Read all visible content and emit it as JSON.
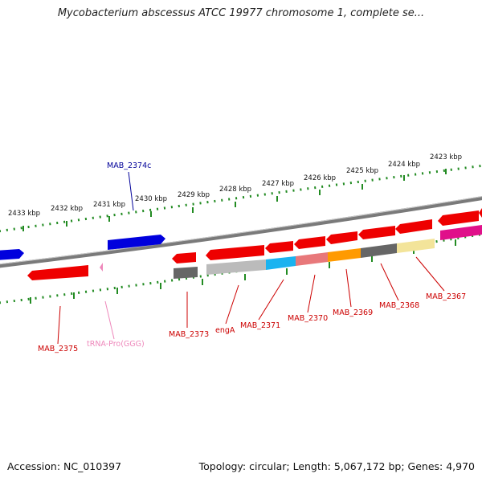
{
  "title": "Mycobacterium abscessus ATCC 19977 chromosome 1, complete se...",
  "accession": "Accession: NC_010397",
  "topology": "Topology: circular; Length: 5,067,172 bp; Genes: 4,970",
  "colors": {
    "tick": "#228B22",
    "backbone": "#808080",
    "forward_gene": "#0000dd",
    "reverse_gene": "#ee0000",
    "label_reverse": "#cc0000",
    "label_forward": "#000099",
    "trna": "#ee88bb"
  },
  "scale_labels": [
    "2433 kbp",
    "2432 kbp",
    "2431 kbp",
    "2430 kbp",
    "2429 kbp",
    "2428 kbp",
    "2427 kbp",
    "2426 kbp",
    "2425 kbp",
    "2424 kbp",
    "2423 kbp"
  ],
  "gene_labels": {
    "mab2374c": "MAB_2374c",
    "mab2375": "MAB_2375",
    "trna": "tRNA-Pro(GGG)",
    "mab2373": "MAB_2373",
    "enga": "engA",
    "mab2371": "MAB_2371",
    "mab2370": "MAB_2370",
    "mab2369": "MAB_2369",
    "mab2368": "MAB_2368",
    "mab2367": "MAB_2367"
  },
  "orf_colors": [
    "#bbbbbb",
    "#1ab3f0",
    "#e8787a",
    "#ff9a00",
    "#666666",
    "#f3e49a",
    "#e0108a"
  ]
}
